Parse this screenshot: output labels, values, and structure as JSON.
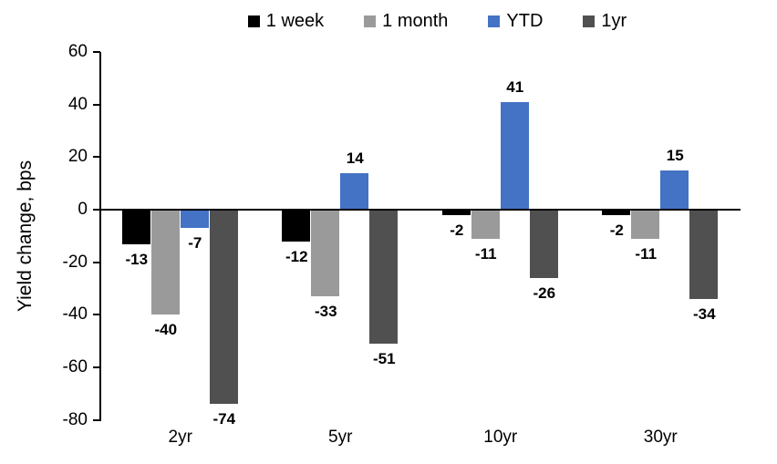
{
  "chart_data": {
    "type": "bar",
    "title": "",
    "ylabel": "Yield change, bps",
    "xlabel": "",
    "categories": [
      "2yr",
      "5yr",
      "10yr",
      "30yr"
    ],
    "series": [
      {
        "name": "1 week",
        "color": "#000000",
        "values": [
          -13,
          -12,
          -2,
          -2
        ]
      },
      {
        "name": "1 month",
        "color": "#9A9A9A",
        "values": [
          -40,
          -33,
          -11,
          -11
        ]
      },
      {
        "name": "YTD",
        "color": "#4472C4",
        "values": [
          -7,
          14,
          41,
          15
        ]
      },
      {
        "name": "1yr",
        "color": "#505050",
        "values": [
          -74,
          -51,
          -26,
          -34
        ]
      }
    ],
    "ylim": [
      -80,
      60
    ],
    "yticks": [
      60,
      40,
      20,
      0,
      -20,
      -40,
      -60,
      -80
    ],
    "grid": false,
    "data_labels": true,
    "legend_position": "top",
    "axis_color": "#000000",
    "background_color": "#FFFFFF"
  }
}
